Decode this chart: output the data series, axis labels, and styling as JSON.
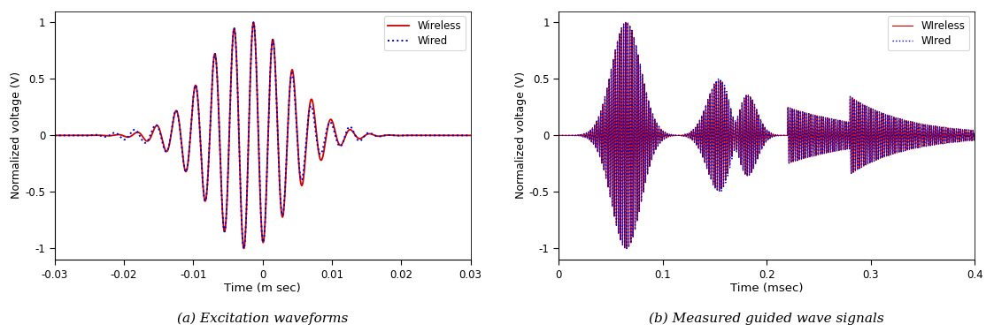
{
  "fig_width": 11.23,
  "fig_height": 3.76,
  "dpi": 100,
  "plot_a": {
    "xlabel": "Time (m sec)",
    "ylabel": "Normalized voltage (V)",
    "xlim": [
      -0.03,
      0.03
    ],
    "ylim": [
      -1.1,
      1.1
    ],
    "xticks": [
      -0.03,
      -0.02,
      -0.01,
      0,
      0.01,
      0.02,
      0.03
    ],
    "xtick_labels": [
      "-0.03",
      "-0.02",
      "-0.01",
      "0",
      "0.01",
      "0.02",
      "0.03"
    ],
    "yticks": [
      -1,
      -0.5,
      0,
      0.5,
      1
    ],
    "legend": [
      "Wired",
      "Wireless"
    ],
    "wired_color": "#0000CC",
    "wireless_color": "#CC0000"
  },
  "plot_b": {
    "xlabel": "Time (msec)",
    "ylabel": "Normalized voltage (V)",
    "xlim": [
      0,
      0.4
    ],
    "ylim": [
      -1.1,
      1.1
    ],
    "xticks": [
      0,
      0.1,
      0.2,
      0.3,
      0.4
    ],
    "xtick_labels": [
      "0",
      "0.1",
      "0.2",
      "0.3",
      "0.4"
    ],
    "yticks": [
      -1,
      -0.5,
      0,
      0.5,
      1
    ],
    "legend": [
      "WIred",
      "WIreless"
    ],
    "wired_color": "#0000CC",
    "wireless_color": "#CC0000"
  },
  "caption_a": "(a) Excitation waveforms",
  "caption_b": "(b) Measured guided wave signals",
  "caption_fontsize": 11
}
